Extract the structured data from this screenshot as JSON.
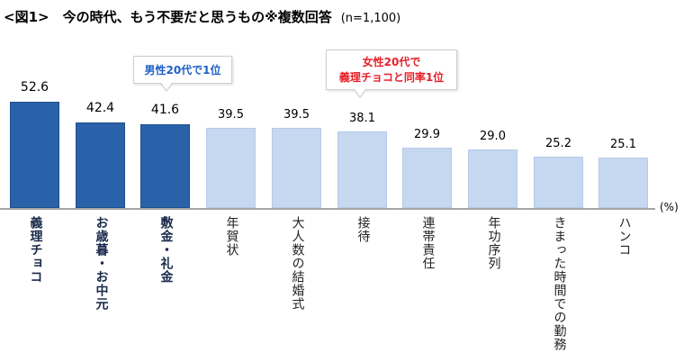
{
  "title": {
    "main": "<図1>　今の時代、もう不要だと思うもの※複数回答",
    "sample": "(n=1,100)"
  },
  "unit_label": "(%)",
  "colors": {
    "highlight_bar": "#2a62aa",
    "normal_bar": "#c6d8f0",
    "callout_male_text": "#1f5fc8",
    "callout_female_text": "#e8202a"
  },
  "callouts": [
    {
      "lines": [
        "男性20代で1位"
      ],
      "color": "#1f5fc8",
      "target_index": 2
    },
    {
      "lines": [
        "女性20代で",
        "義理チョコと同率1位"
      ],
      "color": "#e8202a",
      "target_index": 5
    }
  ],
  "chart_data": {
    "type": "bar",
    "title": "今の時代、もう不要だと思うもの※複数回答 (n=1,100)",
    "xlabel": "",
    "ylabel": "(%)",
    "ylim": [
      0,
      60
    ],
    "grid": false,
    "legend": null,
    "categories": [
      "義理チョコ",
      "お歳暮・お中元",
      "敷金・礼金",
      "年賀状",
      "大人数の結婚式",
      "接待",
      "連帯責任",
      "年功序列",
      "きまった時間での勤務",
      "ハンコ"
    ],
    "values": [
      52.6,
      42.4,
      41.6,
      39.5,
      39.5,
      38.1,
      29.9,
      29.0,
      25.2,
      25.1
    ],
    "value_labels": [
      "52.6",
      "42.4",
      "41.6",
      "39.5",
      "39.5",
      "38.1",
      "29.9",
      "29.0",
      "25.2",
      "25.1"
    ],
    "highlighted": [
      true,
      true,
      true,
      false,
      false,
      false,
      false,
      false,
      false,
      false
    ],
    "annotations": [
      "男性20代で1位 (敷金・礼金)",
      "女性20代で義理チョコと同率1位 (接待)"
    ]
  }
}
